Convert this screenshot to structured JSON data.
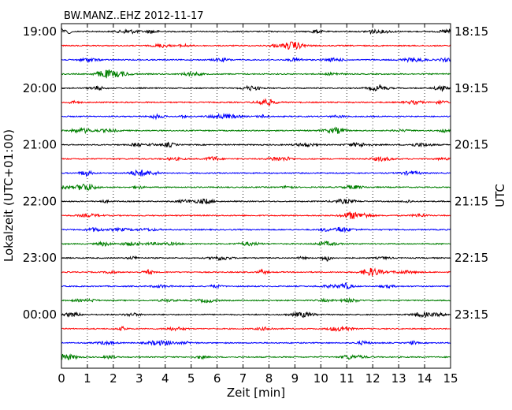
{
  "chart_data": {
    "type": "line",
    "title": "BW.MANZ..EHZ 2012-11-17",
    "xlabel": "Zeit  [min]",
    "ylabel_left": "Lokalzeit (UTC+01:00)",
    "ylabel_right": "UTC",
    "xlim": [
      0,
      15
    ],
    "x_ticks": [
      "0",
      "1",
      "2",
      "3",
      "4",
      "5",
      "6",
      "7",
      "8",
      "9",
      "10",
      "11",
      "12",
      "13",
      "14",
      "15"
    ],
    "grid": "vertical dotted",
    "left_tick_labels": [
      "19:00",
      "20:00",
      "21:00",
      "22:00",
      "23:00",
      "00:00"
    ],
    "right_tick_labels": [
      "18:15",
      "19:15",
      "20:15",
      "21:15",
      "22:15",
      "23:15"
    ],
    "trace_colors": [
      "#000000",
      "#ff0000",
      "#0000ff",
      "#007f00"
    ],
    "trace_count": 24,
    "trace_minutes": 15
  }
}
